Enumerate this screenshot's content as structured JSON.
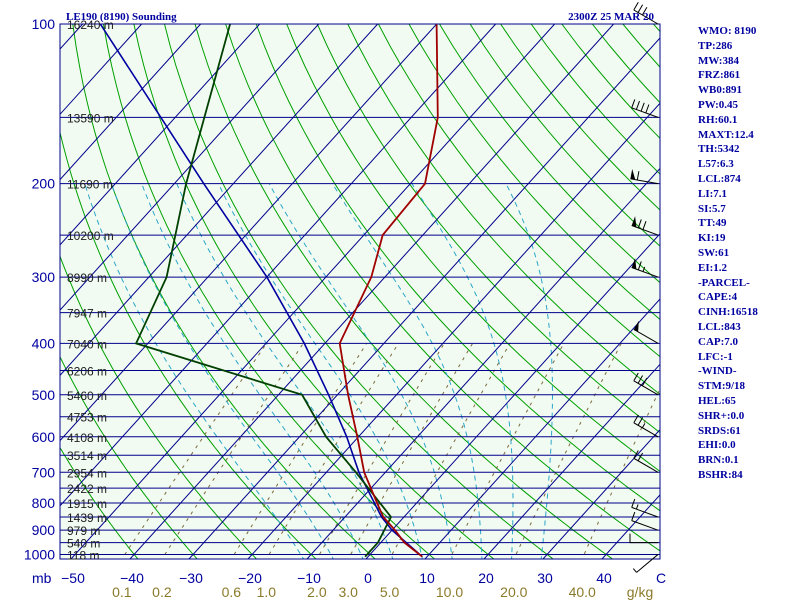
{
  "header": {
    "title": "LE190 (8190) Sounding",
    "time": "2300Z 25 MAR 20"
  },
  "colors": {
    "plot_bg": "#f2fbf2",
    "isobar": "#00008b",
    "isotherm": "#00008b",
    "dry_adiabat": "#00a000",
    "moist_adiabat": "#2aa6c8",
    "mixing_ratio": "#7a6a3a",
    "temperature": "#a00000",
    "dewpoint": "#004000",
    "parcel": "#0000a0",
    "pressure_label": "#0000a0",
    "temp_label": "#0000a0",
    "mixing_label": "#8b7a2a",
    "wind": "#000000"
  },
  "chart_data": {
    "type": "skew-t",
    "title": "LE190 (8190) Sounding",
    "x_unit": "mb",
    "mixing_unit": "g/kg",
    "pressure_levels": [
      100,
      200,
      300,
      400,
      500,
      600,
      700,
      800,
      900,
      1000
    ],
    "pressure_labels": [
      "100",
      "200",
      "300",
      "400",
      "500",
      "600",
      "700",
      "800",
      "900",
      "1000"
    ],
    "temperature_ticks": [
      -50,
      -40,
      -30,
      -20,
      -10,
      0,
      10,
      20,
      30,
      40
    ],
    "temperature_labels": [
      "−50",
      "−40",
      "−30",
      "−20",
      "−10",
      "0",
      "10",
      "20",
      "30",
      "40"
    ],
    "temperature_edge_label": "C",
    "mixing_ratio_values": [
      0.1,
      0.2,
      0.6,
      1.0,
      2.0,
      3.0,
      5.0,
      10.0,
      20.0,
      40.0
    ],
    "mixing_ratio_labels": [
      "0.1",
      "0.2",
      "0.6",
      "1.0",
      "2.0",
      "3.0",
      "5.0",
      "10.0",
      "20.0",
      "40.0"
    ],
    "heights": [
      {
        "p": 100,
        "label": "16240 m"
      },
      {
        "p": 150,
        "label": "13590 m"
      },
      {
        "p": 200,
        "label": "11690 m"
      },
      {
        "p": 250,
        "label": "10200 m"
      },
      {
        "p": 300,
        "label": "8990 m"
      },
      {
        "p": 350,
        "label": "7947 m"
      },
      {
        "p": 400,
        "label": "7040 m"
      },
      {
        "p": 450,
        "label": "6206 m"
      },
      {
        "p": 500,
        "label": "5460 m"
      },
      {
        "p": 550,
        "label": "4753 m"
      },
      {
        "p": 600,
        "label": "4108 m"
      },
      {
        "p": 650,
        "label": "3514 m"
      },
      {
        "p": 700,
        "label": "2954 m"
      },
      {
        "p": 750,
        "label": "2422 m"
      },
      {
        "p": 800,
        "label": "1915 m"
      },
      {
        "p": 850,
        "label": "1439 m"
      },
      {
        "p": 900,
        "label": "979 m"
      },
      {
        "p": 950,
        "label": "540 m"
      },
      {
        "p": 1000,
        "label": "118 m"
      }
    ],
    "temperature_profile": [
      {
        "p": 1010,
        "t": 9.2
      },
      {
        "p": 950,
        "t": 4.0
      },
      {
        "p": 900,
        "t": 0.5
      },
      {
        "p": 850,
        "t": -3.5
      },
      {
        "p": 800,
        "t": -6.7
      },
      {
        "p": 700,
        "t": -13.6
      },
      {
        "p": 600,
        "t": -20.2
      },
      {
        "p": 500,
        "t": -28.2
      },
      {
        "p": 400,
        "t": -37.5
      },
      {
        "p": 300,
        "t": -42.3
      },
      {
        "p": 250,
        "t": -46.8
      },
      {
        "p": 200,
        "t": -47.5
      },
      {
        "p": 150,
        "t": -55.5
      },
      {
        "p": 100,
        "t": -70.0
      }
    ],
    "dewpoint_profile": [
      {
        "p": 1010,
        "t": -0.5
      },
      {
        "p": 1000,
        "t": -0.5
      },
      {
        "p": 950,
        "t": -0.5
      },
      {
        "p": 850,
        "t": -2.2
      },
      {
        "p": 700,
        "t": -15.0
      },
      {
        "p": 600,
        "t": -25.5
      },
      {
        "p": 500,
        "t": -36.0
      },
      {
        "p": 400,
        "t": -72.0
      },
      {
        "p": 300,
        "t": -77.0
      },
      {
        "p": 200,
        "t": -88.0
      },
      {
        "p": 100,
        "t": -105.0
      }
    ],
    "parcel_profile": [
      {
        "p": 1010,
        "t": 9.2
      },
      {
        "p": 900,
        "t": 0.0
      },
      {
        "p": 850,
        "t": -3.8
      },
      {
        "p": 700,
        "t": -14.5
      },
      {
        "p": 600,
        "t": -22.0
      },
      {
        "p": 500,
        "t": -31.5
      },
      {
        "p": 400,
        "t": -43.5
      },
      {
        "p": 300,
        "t": -60.0
      },
      {
        "p": 200,
        "t": -85.0
      },
      {
        "p": 100,
        "t": -127.0
      }
    ],
    "wind_barbs": [
      {
        "p": 1000,
        "dir": 230,
        "spd": 5
      },
      {
        "p": 950,
        "dir": 270,
        "spd": 10
      },
      {
        "p": 900,
        "dir": 290,
        "spd": 10
      },
      {
        "p": 850,
        "dir": 290,
        "spd": 15
      },
      {
        "p": 700,
        "dir": 300,
        "spd": 20
      },
      {
        "p": 600,
        "dir": 300,
        "spd": 25
      },
      {
        "p": 500,
        "dir": 300,
        "spd": 30
      },
      {
        "p": 400,
        "dir": 300,
        "spd": 50
      },
      {
        "p": 300,
        "dir": 290,
        "spd": 65
      },
      {
        "p": 250,
        "dir": 290,
        "spd": 70
      },
      {
        "p": 200,
        "dir": 280,
        "spd": 60
      },
      {
        "p": 150,
        "dir": 290,
        "spd": 40
      },
      {
        "p": 100,
        "dir": 300,
        "spd": 30
      }
    ]
  },
  "indices": [
    "WMO: 8190",
    "TP:286",
    "MW:384",
    "FRZ:861",
    "WB0:891",
    "PW:0.45",
    "RH:60.1",
    "MAXT:12.4",
    "TH:5342",
    "L57:6.3",
    "LCL:874",
    "LI:7.1",
    "SI:5.7",
    "TT:49",
    "KI:19",
    "SW:61",
    "EI:1.2",
    "-PARCEL-",
    "CAPE:4",
    "CINH:16518",
    "LCL:843",
    "CAP:7.0",
    "LFC:-1",
    "-WIND-",
    "STM:9/18",
    "HEL:65",
    "SHR+:0.0",
    "SRDS:61",
    "EHI:0.0",
    "BRN:0.1",
    "BSHR:84"
  ]
}
